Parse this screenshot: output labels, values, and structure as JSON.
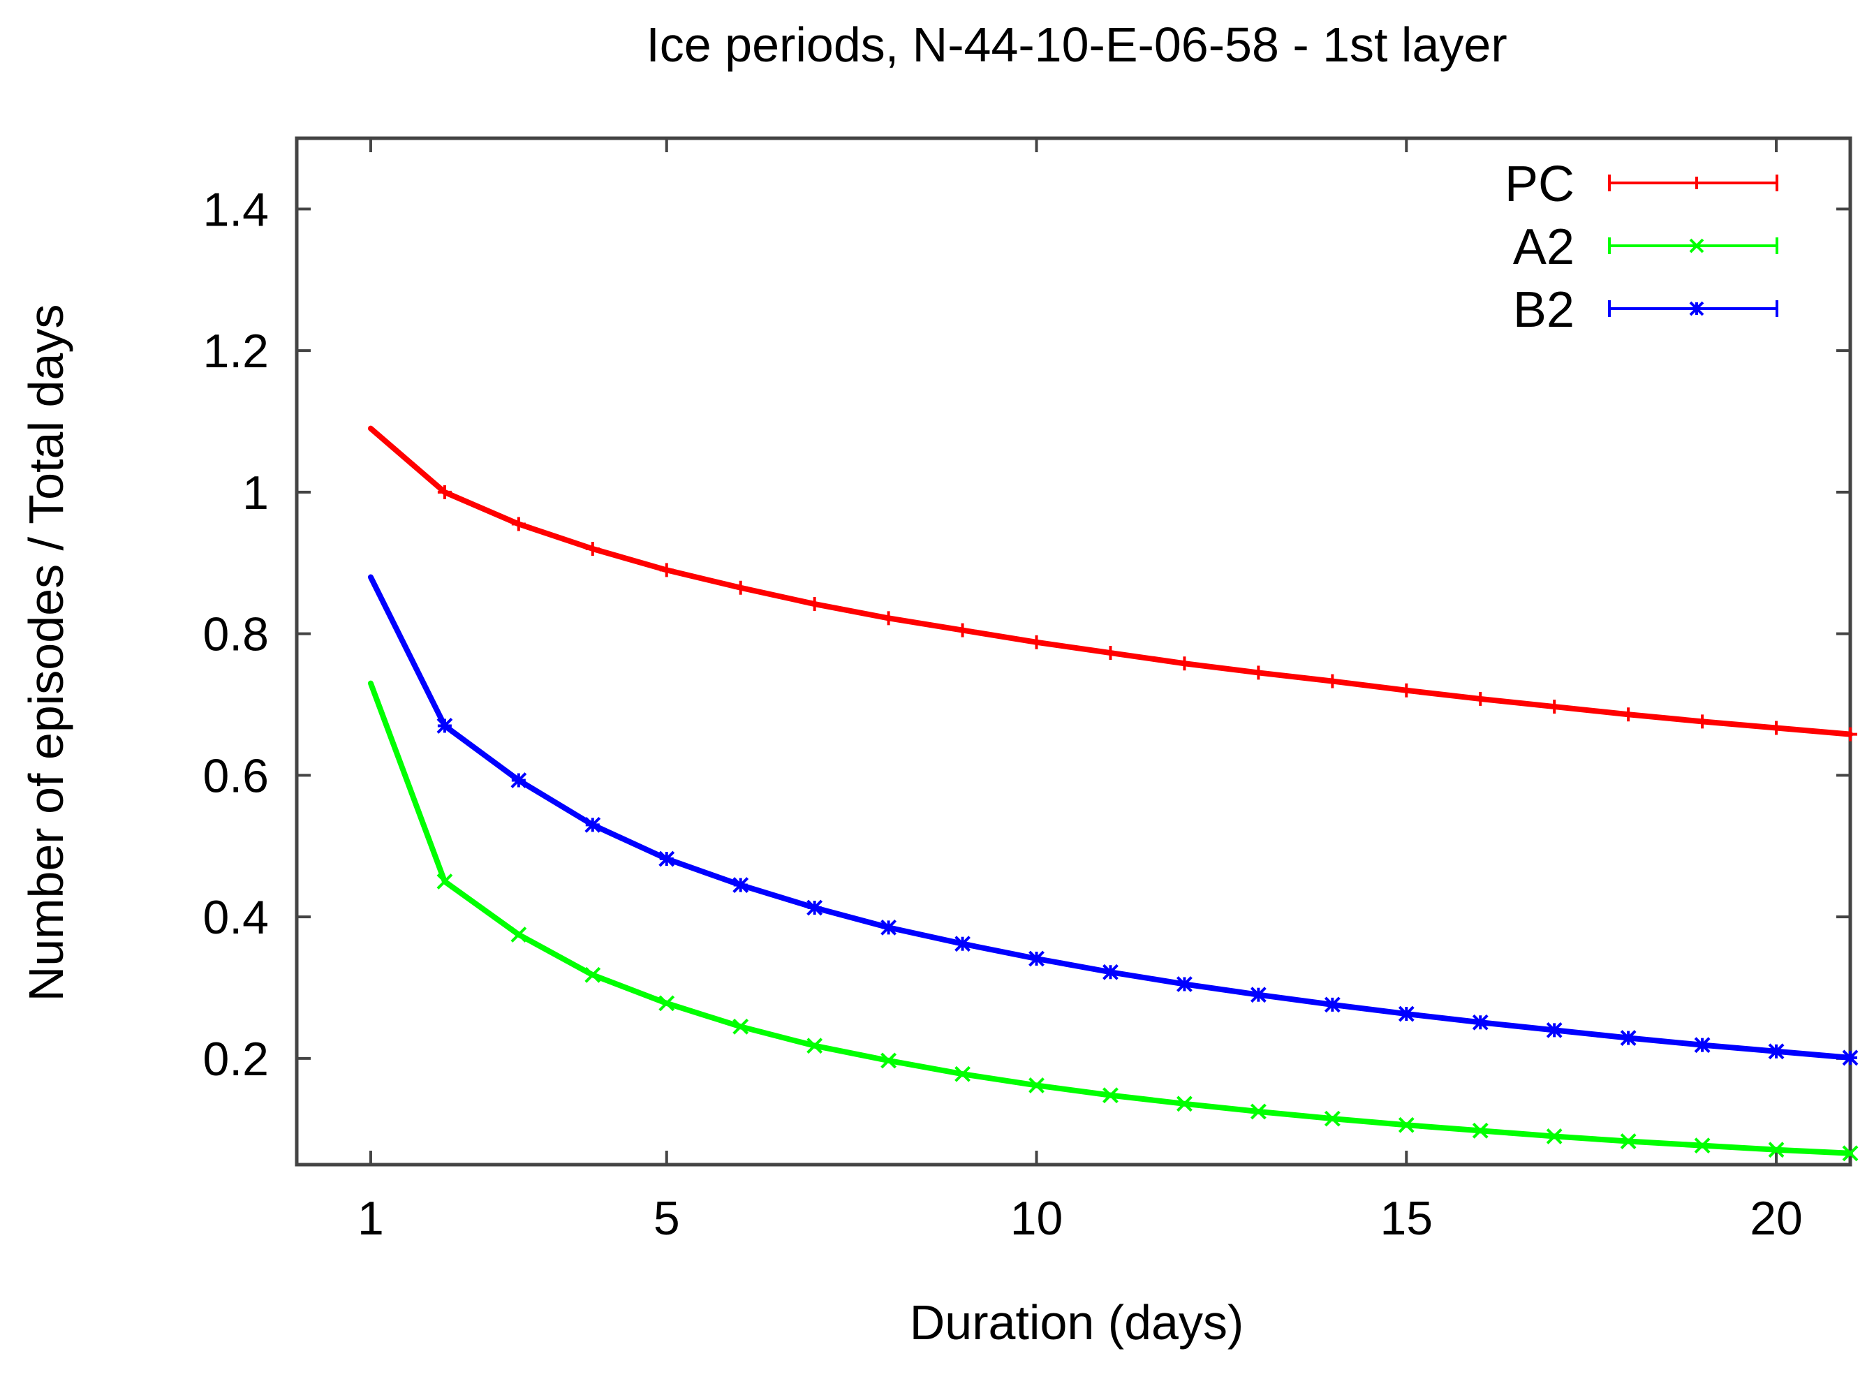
{
  "chart_data": {
    "type": "line",
    "title": "Ice periods, N-44-10-E-06-58 - 1st layer",
    "xlabel": "Duration (days)",
    "ylabel": "Number of episodes / Total days",
    "xlim": [
      0,
      21
    ],
    "ylim": [
      0.05,
      1.5
    ],
    "xticks": [
      1,
      5,
      10,
      15,
      20
    ],
    "yticks": [
      0.2,
      0.4,
      0.6,
      0.8,
      1,
      1.2,
      1.4
    ],
    "ytick_labels": [
      "0.2",
      "0.4",
      "0.6",
      "0.8",
      "1",
      "1.2",
      "1.4"
    ],
    "legend_position": "top-right",
    "grid": false,
    "x": [
      1,
      2,
      3,
      4,
      5,
      6,
      7,
      8,
      9,
      10,
      11,
      12,
      13,
      14,
      15,
      16,
      17,
      18,
      19,
      20,
      21
    ],
    "series": [
      {
        "name": "PC",
        "color": "#ff0000",
        "marker": "plus",
        "values": [
          1.09,
          1.0,
          0.955,
          0.92,
          0.89,
          0.865,
          0.842,
          0.822,
          0.805,
          0.788,
          0.773,
          0.758,
          0.745,
          0.733,
          0.72,
          0.708,
          0.697,
          0.686,
          0.676,
          0.667,
          0.658
        ]
      },
      {
        "name": "A2",
        "color": "#00ff00",
        "marker": "cross",
        "values": [
          0.73,
          0.45,
          0.375,
          0.318,
          0.278,
          0.245,
          0.218,
          0.197,
          0.178,
          0.162,
          0.148,
          0.136,
          0.125,
          0.115,
          0.106,
          0.098,
          0.09,
          0.083,
          0.077,
          0.071,
          0.066
        ]
      },
      {
        "name": "B2",
        "color": "#0000ff",
        "marker": "star",
        "values": [
          0.88,
          0.67,
          0.593,
          0.53,
          0.482,
          0.445,
          0.413,
          0.385,
          0.362,
          0.341,
          0.322,
          0.305,
          0.29,
          0.276,
          0.263,
          0.251,
          0.24,
          0.229,
          0.219,
          0.21,
          0.201
        ]
      }
    ]
  }
}
